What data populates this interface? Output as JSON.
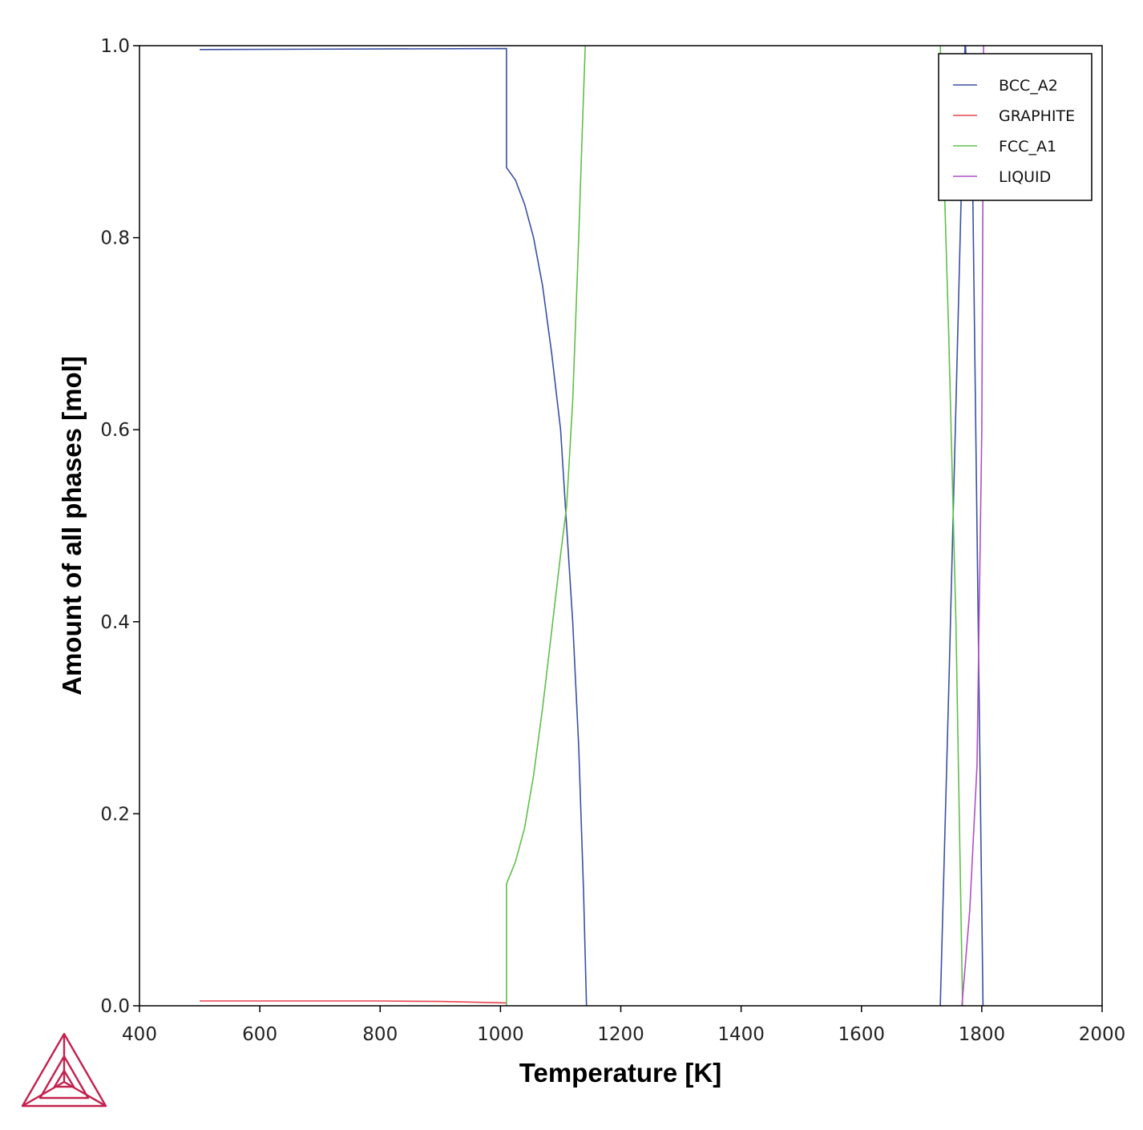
{
  "chart_data": {
    "type": "line",
    "xlabel": "Temperature [K]",
    "ylabel": "Amount of all phases [mol]",
    "xlim": [
      400,
      2000
    ],
    "ylim": [
      0,
      1.0
    ],
    "xticks": [
      "400",
      "600",
      "800",
      "1000",
      "1200",
      "1400",
      "1600",
      "1800",
      "2000"
    ],
    "xtick_values": [
      400,
      600,
      800,
      1000,
      1200,
      1400,
      1600,
      1800,
      2000
    ],
    "yticks": [
      "0.0",
      "0.2",
      "0.4",
      "0.6",
      "0.8",
      "1.0"
    ],
    "ytick_values": [
      0,
      0.2,
      0.4,
      0.6,
      0.8,
      1.0
    ],
    "grid": false,
    "legend_position": "top-right",
    "series": [
      {
        "name": "BCC_A2",
        "color": "#3a4fa3",
        "segments": [
          [
            [
              500,
              0.996
            ],
            [
              1010,
              0.997
            ],
            [
              1010,
              0.873
            ],
            [
              1025,
              0.86
            ],
            [
              1040,
              0.835
            ],
            [
              1055,
              0.8
            ],
            [
              1070,
              0.75
            ],
            [
              1085,
              0.68
            ],
            [
              1100,
              0.6
            ],
            [
              1110,
              0.5
            ],
            [
              1120,
              0.4
            ],
            [
              1130,
              0.27
            ],
            [
              1138,
              0.12
            ],
            [
              1143,
              0.0
            ]
          ],
          [
            [
              1731,
              0.0
            ],
            [
              1746,
              0.35
            ],
            [
              1766,
              0.85
            ],
            [
              1772,
              1.0
            ]
          ],
          [
            [
              1773,
              1.0
            ],
            [
              1785,
              0.85
            ],
            [
              1802,
              0.0
            ]
          ]
        ]
      },
      {
        "name": "GRAPHITE",
        "color": "#e8424e",
        "segments": [
          [
            [
              500,
              0.005
            ],
            [
              800,
              0.005
            ],
            [
              900,
              0.0045
            ],
            [
              1010,
              0.003
            ]
          ]
        ]
      },
      {
        "name": "FCC_A1",
        "color": "#5fbf4a",
        "segments": [
          [
            [
              1010,
              0.0
            ],
            [
              1010,
              0.127
            ],
            [
              1025,
              0.15
            ],
            [
              1040,
              0.185
            ],
            [
              1055,
              0.24
            ],
            [
              1070,
              0.31
            ],
            [
              1085,
              0.39
            ],
            [
              1100,
              0.47
            ],
            [
              1110,
              0.52
            ],
            [
              1120,
              0.63
            ],
            [
              1130,
              0.8
            ],
            [
              1137,
              0.93
            ],
            [
              1141,
              1.0
            ]
          ],
          [
            [
              1731,
              1.0
            ],
            [
              1745,
              0.7
            ],
            [
              1757,
              0.4
            ],
            [
              1768,
              0.0
            ]
          ]
        ]
      },
      {
        "name": "LIQUID",
        "color": "#b04fc8",
        "segments": [
          [
            [
              1767,
              0.0
            ],
            [
              1780,
              0.1
            ],
            [
              1792,
              0.25
            ],
            [
              1800,
              0.6
            ],
            [
              1803,
              1.0
            ]
          ]
        ]
      }
    ]
  },
  "logo": {
    "color": "#c2224e"
  }
}
